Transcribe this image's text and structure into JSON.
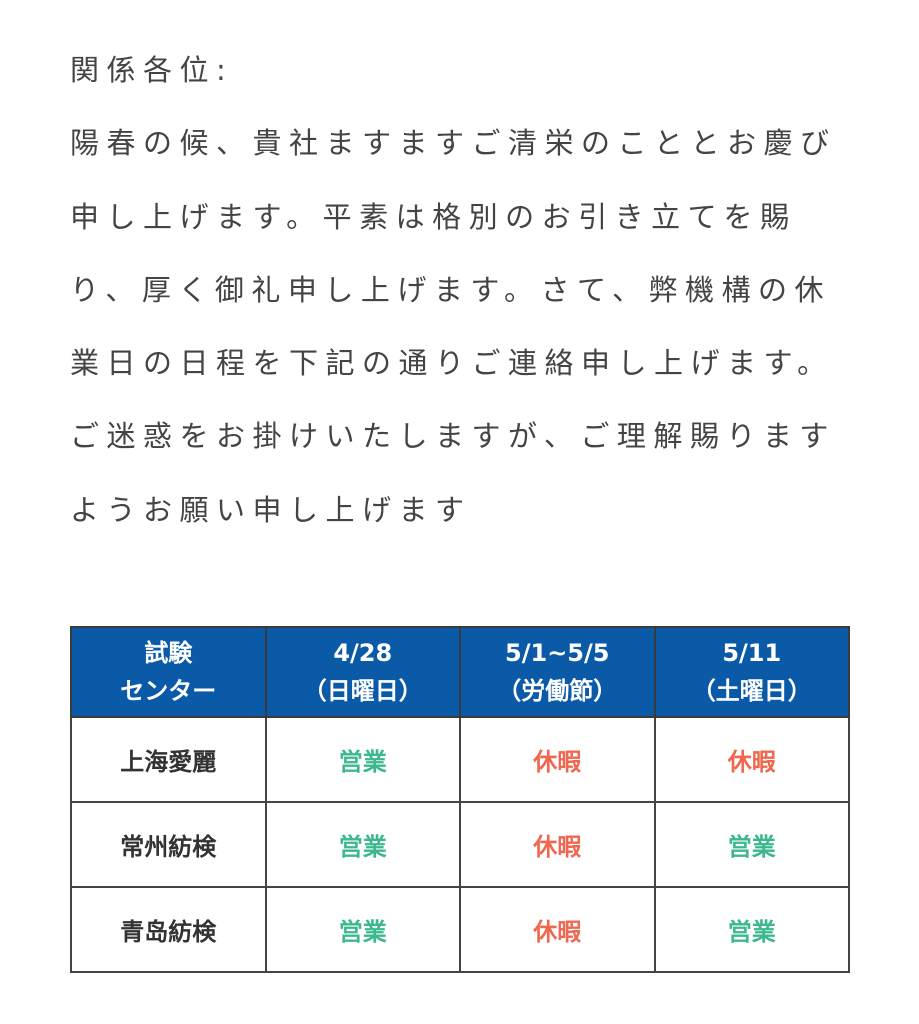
{
  "letter": {
    "lines": [
      "関係各位:",
      "陽春の候、貴社ますますご清栄のこととお慶び",
      "申し上げます。平素は格別のお引き立てを賜",
      "り、厚く御礼申し上げます。さて、弊機構の休",
      "業日の日程を下記の通りご連絡申し上げます。",
      "ご迷惑をお掛けいたしますが、ご理解賜ります",
      "ようお願い申し上げます"
    ]
  },
  "table": {
    "headers": [
      [
        "試験",
        "センター"
      ],
      [
        "4/28",
        "（日曜日）"
      ],
      [
        "5/1~5/5",
        "（労働節）"
      ],
      [
        "5/11",
        "（土曜日）"
      ]
    ],
    "rows": [
      {
        "center": "上海愛麗",
        "values": [
          "営業",
          "休暇",
          "休暇"
        ]
      },
      {
        "center": "常州紡検",
        "values": [
          "営業",
          "休暇",
          "営業"
        ]
      },
      {
        "center": "青岛紡検",
        "values": [
          "営業",
          "休暇",
          "営業"
        ]
      }
    ],
    "colors": {
      "header_bg": "#0b5aa8",
      "open": "#3cb88f",
      "closed": "#f0674f"
    }
  }
}
